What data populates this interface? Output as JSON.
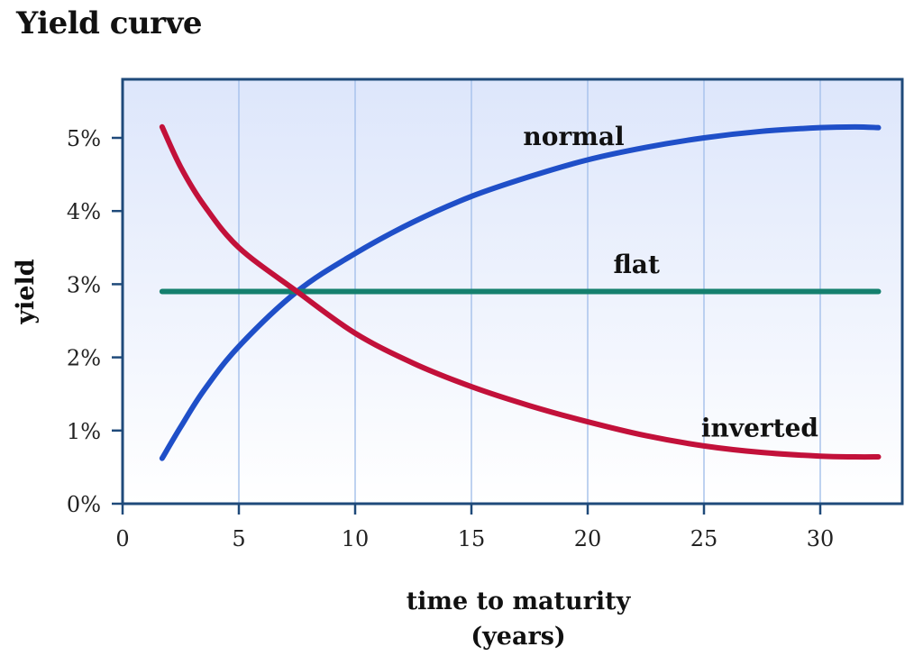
{
  "chart_data": {
    "type": "line",
    "title": "Yield curve",
    "xlabel": [
      "time to maturity",
      "(years)"
    ],
    "ylabel": "yield",
    "xlim": [
      0,
      33.5
    ],
    "ylim": [
      0,
      5
    ],
    "x_ticks": [
      0,
      5,
      10,
      15,
      20,
      25,
      30
    ],
    "x_tick_labels": [
      "0",
      "5",
      "10",
      "15",
      "20",
      "25",
      "30"
    ],
    "y_ticks": [
      0,
      1,
      2,
      3,
      4,
      5
    ],
    "y_tick_labels": [
      "0%",
      "1%",
      "2%",
      "3%",
      "4%",
      "5%"
    ],
    "grid": "vertical",
    "background": [
      "#dde6fb",
      "#ffffff"
    ],
    "series": [
      {
        "name": "normal",
        "color": "#1f4fc8",
        "x": [
          1.7,
          2.5,
          3.5,
          5,
          7.5,
          10,
          12.5,
          15,
          17.5,
          20,
          22.5,
          25,
          27.5,
          30,
          31.5,
          32.5
        ],
        "y": [
          0.62,
          1.05,
          1.55,
          2.15,
          2.9,
          3.42,
          3.85,
          4.2,
          4.47,
          4.7,
          4.87,
          5.0,
          5.09,
          5.14,
          5.15,
          5.14
        ]
      },
      {
        "name": "flat",
        "color": "#14806e",
        "x": [
          1.7,
          32.5
        ],
        "y": [
          2.9,
          2.9
        ]
      },
      {
        "name": "inverted",
        "color": "#c2113a",
        "x": [
          1.7,
          2.5,
          3.5,
          5,
          7.5,
          10,
          12.5,
          15,
          17.5,
          20,
          22.5,
          25,
          27.5,
          30,
          31.5,
          32.5
        ],
        "y": [
          5.15,
          4.6,
          4.08,
          3.5,
          2.9,
          2.33,
          1.92,
          1.6,
          1.34,
          1.12,
          0.93,
          0.79,
          0.7,
          0.65,
          0.64,
          0.64
        ]
      }
    ],
    "series_labels": [
      {
        "text": "normal",
        "x": 19.4,
        "y": 4.9
      },
      {
        "text": "flat",
        "x": 22.1,
        "y": 3.15
      },
      {
        "text": "inverted",
        "x": 27.4,
        "y": 0.92
      }
    ]
  }
}
